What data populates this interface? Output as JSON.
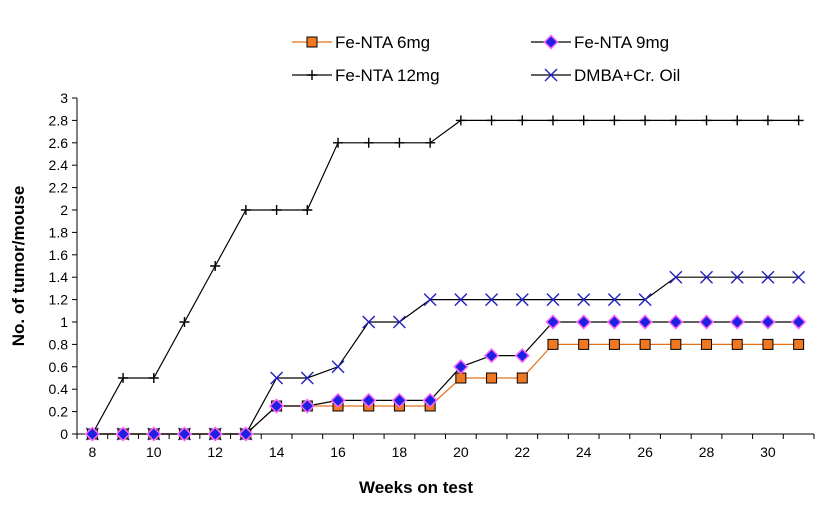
{
  "chart_data": {
    "type": "line",
    "title": "",
    "xlabel": "Weeks on test",
    "ylabel": "No. of tumor/mouse",
    "xlim": [
      8,
      31
    ],
    "ylim": [
      0,
      3
    ],
    "x_ticks": [
      8,
      10,
      12,
      14,
      16,
      18,
      20,
      22,
      24,
      26,
      28,
      30
    ],
    "y_ticks": [
      "0",
      "0.2",
      "0.4",
      "0.6",
      "0.8",
      "1",
      "1.2",
      "1.4",
      "1.6",
      "1.8",
      "2",
      "2.2",
      "2.4",
      "2.6",
      "2.8",
      "3"
    ],
    "grid": false,
    "legend_position": "top",
    "x": [
      8,
      9,
      10,
      11,
      12,
      13,
      14,
      15,
      16,
      17,
      18,
      19,
      20,
      21,
      22,
      23,
      24,
      25,
      26,
      27,
      28,
      29,
      30,
      31
    ],
    "series": [
      {
        "name": "Fe-NTA 6mg",
        "marker": "square",
        "color": "#000000",
        "marker_color": "#F07820",
        "values": [
          0,
          0,
          0,
          0,
          0,
          0,
          0.25,
          0.25,
          0.25,
          0.25,
          0.25,
          0.25,
          0.5,
          0.5,
          0.5,
          0.8,
          0.8,
          0.8,
          0.8,
          0.8,
          0.8,
          0.8,
          0.8,
          0.8
        ]
      },
      {
        "name": "Fe-NTA 9mg",
        "marker": "diamond",
        "color": "#000000",
        "marker_color": "#2020E0",
        "marker_fill2": "#FF66FF",
        "values": [
          0,
          0,
          0,
          0,
          0,
          0,
          0.25,
          0.25,
          0.3,
          0.3,
          0.3,
          0.3,
          0.6,
          0.7,
          0.7,
          1.0,
          1.0,
          1.0,
          1.0,
          1.0,
          1.0,
          1.0,
          1.0,
          1.0
        ]
      },
      {
        "name": "Fe-NTA 12mg",
        "marker": "plus",
        "color": "#000000",
        "marker_color": "#000000",
        "values": [
          0,
          0.5,
          0.5,
          1.0,
          1.5,
          2.0,
          2.0,
          2.0,
          2.6,
          2.6,
          2.6,
          2.6,
          2.8,
          2.8,
          2.8,
          2.8,
          2.8,
          2.8,
          2.8,
          2.8,
          2.8,
          2.8,
          2.8,
          2.8
        ]
      },
      {
        "name": "DMBA+Cr. Oil",
        "marker": "x",
        "color": "#000000",
        "marker_color": "#2020C0",
        "values": [
          0,
          0,
          0,
          0,
          0,
          0,
          0.5,
          0.5,
          0.6,
          1.0,
          1.0,
          1.2,
          1.2,
          1.2,
          1.2,
          1.2,
          1.2,
          1.2,
          1.2,
          1.4,
          1.4,
          1.4,
          1.4,
          1.4
        ]
      }
    ]
  }
}
